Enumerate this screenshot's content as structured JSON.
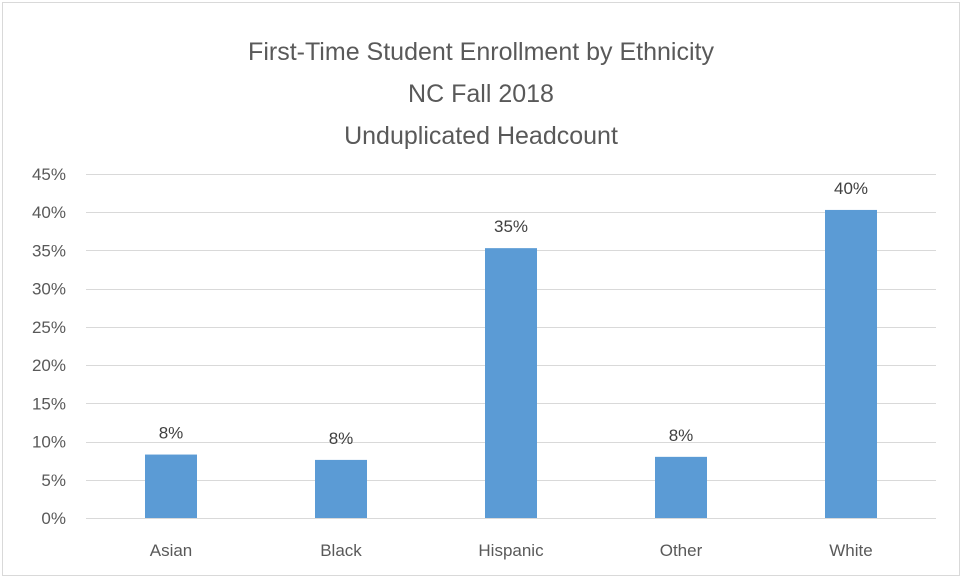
{
  "chart_data": {
    "type": "bar",
    "title": [
      "First-Time  Student  Enrollment by Ethnicity",
      "NC Fall 2018",
      "Unduplicated Headcount"
    ],
    "xlabel": "",
    "ylabel": "",
    "categories": [
      "Asian",
      "Black",
      "Hispanic",
      "Other",
      "White"
    ],
    "values": [
      8.3,
      7.6,
      35.3,
      8.0,
      40.3
    ],
    "data_labels": [
      "8%",
      "8%",
      "35%",
      "8%",
      "40%"
    ],
    "ylim": [
      0,
      45
    ],
    "yticks": [
      0,
      5,
      10,
      15,
      20,
      25,
      30,
      35,
      40,
      45
    ],
    "ytick_labels": [
      "0%",
      "5%",
      "10%",
      "15%",
      "20%",
      "25%",
      "30%",
      "35%",
      "40%",
      "45%"
    ],
    "grid": true,
    "legend": "none",
    "colors": {
      "bar": "#5b9bd5",
      "grid": "#d9d9d9",
      "text": "#595959"
    }
  }
}
